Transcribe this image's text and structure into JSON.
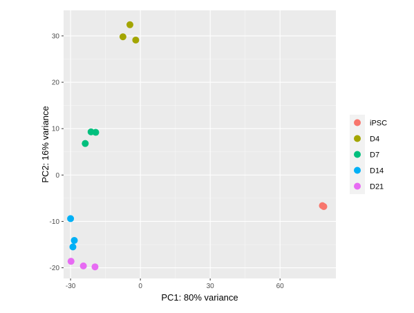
{
  "chart_data": {
    "type": "scatter",
    "xlabel": "PC1: 80% variance",
    "ylabel": "PC2: 16% variance",
    "xlim": [
      -33,
      84
    ],
    "ylim": [
      -22.3,
      35.5
    ],
    "x_ticks": [
      -30,
      0,
      30,
      60
    ],
    "x_tick_labels": [
      "-30",
      "0",
      "30",
      "60"
    ],
    "y_ticks": [
      -20,
      -10,
      0,
      10,
      20,
      30
    ],
    "y_tick_labels": [
      "-20",
      "-10",
      "0",
      "10",
      "20",
      "30"
    ],
    "grid": true,
    "legend_position": "right",
    "series": [
      {
        "name": "iPSC",
        "color": "#F8766D",
        "points": [
          [
            78.2,
            -6.6
          ],
          [
            78.8,
            -6.8
          ]
        ]
      },
      {
        "name": "D4",
        "color": "#A3A500",
        "points": [
          [
            -4.5,
            32.4
          ],
          [
            -7.5,
            29.8
          ],
          [
            -2.0,
            29.1
          ]
        ]
      },
      {
        "name": "D7",
        "color": "#00BF7D",
        "points": [
          [
            -21.2,
            9.3
          ],
          [
            -19.2,
            9.2
          ],
          [
            -23.7,
            6.8
          ]
        ]
      },
      {
        "name": "D14",
        "color": "#00B0F6",
        "points": [
          [
            -30.0,
            -9.4
          ],
          [
            -28.4,
            -14.1
          ],
          [
            -29.0,
            -15.5
          ]
        ]
      },
      {
        "name": "D21",
        "color": "#E76BF3",
        "points": [
          [
            -29.8,
            -18.6
          ],
          [
            -24.5,
            -19.6
          ],
          [
            -19.5,
            -19.8
          ]
        ]
      }
    ]
  }
}
